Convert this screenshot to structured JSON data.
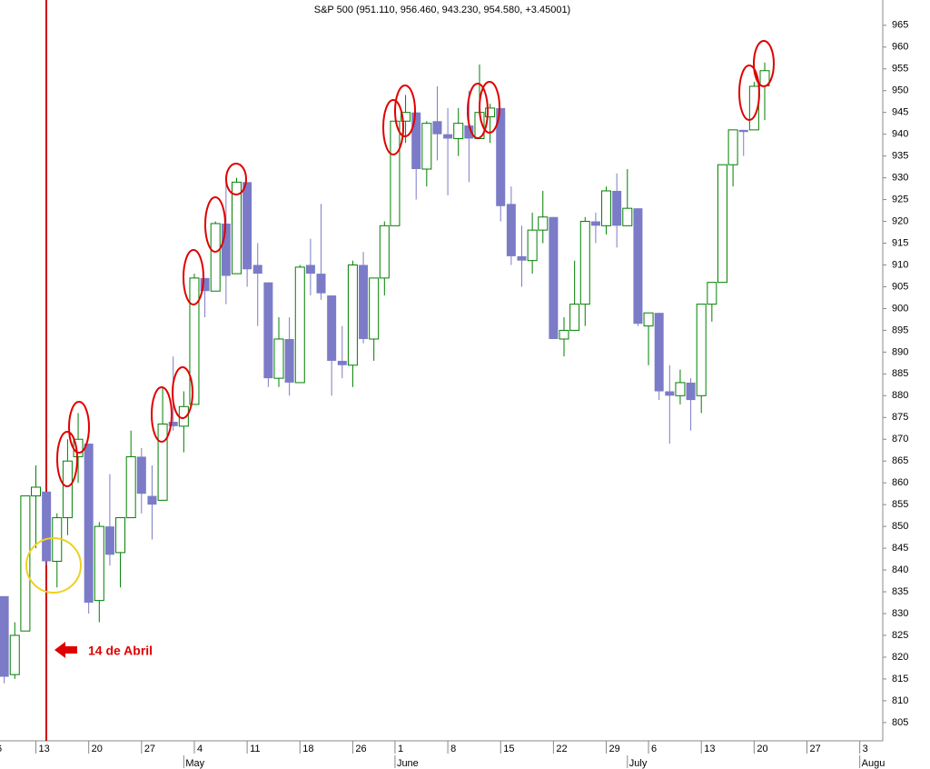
{
  "chart_data": {
    "type": "candlestick",
    "title": "S&P 500 (951.110, 956.460, 943.230, 954.580, +3.45001)",
    "annotation": "14 de Abril",
    "categories": [
      "6",
      null,
      null,
      null,
      "13",
      null,
      null,
      null,
      null,
      "20",
      null,
      null,
      null,
      null,
      "27",
      null,
      null,
      null,
      null,
      "4",
      null,
      null,
      null,
      null,
      "11",
      null,
      null,
      null,
      null,
      "18",
      null,
      null,
      null,
      null,
      "26",
      null,
      null,
      null,
      "1",
      null,
      null,
      null,
      null,
      "8",
      null,
      null,
      null,
      null,
      "15",
      null,
      null,
      null,
      null,
      "22",
      null,
      null,
      null,
      null,
      "29",
      null,
      null,
      null,
      "6",
      null,
      null,
      null,
      null,
      "13",
      null,
      null,
      null,
      null,
      "20",
      null,
      null,
      null,
      null,
      "27",
      null,
      null,
      null,
      null,
      "3",
      null,
      null
    ],
    "month_labels": [
      null,
      null,
      null,
      null,
      null,
      null,
      null,
      null,
      null,
      null,
      null,
      null,
      null,
      null,
      null,
      null,
      null,
      null,
      "May",
      null,
      null,
      null,
      null,
      null,
      null,
      null,
      null,
      null,
      null,
      null,
      null,
      null,
      null,
      null,
      null,
      null,
      null,
      null,
      "June",
      null,
      null,
      null,
      null,
      null,
      null,
      null,
      null,
      null,
      null,
      null,
      null,
      null,
      null,
      null,
      null,
      null,
      null,
      null,
      null,
      null,
      "July",
      null,
      null,
      null,
      null,
      null,
      null,
      null,
      null,
      null,
      null,
      null,
      null,
      null,
      null,
      null,
      null,
      null,
      null,
      null,
      null,
      null,
      "Augu",
      null,
      null
    ],
    "open": [
      null,
      834,
      816,
      826,
      857,
      858,
      842,
      852,
      866,
      869,
      833,
      850,
      844,
      852,
      866,
      857,
      856,
      874,
      873,
      878,
      907,
      904,
      919.5,
      908,
      929,
      910,
      906,
      884,
      893,
      883,
      910,
      908,
      903,
      888,
      887,
      910,
      893,
      907,
      919,
      943,
      945,
      932,
      943,
      940,
      939,
      942,
      939,
      944,
      946,
      924,
      912,
      911,
      918,
      921,
      893,
      895,
      901,
      920,
      919,
      927,
      919,
      923,
      896,
      899,
      881,
      880,
      883,
      880,
      901,
      906,
      933,
      941,
      941,
      951.11,
      null,
      null,
      null,
      null,
      null,
      null,
      null,
      null,
      null,
      null,
      null
    ],
    "high": [
      null,
      834,
      828,
      857,
      864,
      858,
      853,
      870,
      876,
      869,
      851,
      862,
      852,
      872,
      868,
      864,
      882,
      889,
      881,
      908,
      907,
      920,
      929,
      930,
      929,
      915,
      906,
      898,
      898,
      910,
      916,
      924,
      903,
      896,
      911,
      913,
      907,
      920,
      943,
      949,
      945,
      943,
      951,
      946,
      946,
      950,
      956,
      947,
      946,
      928,
      919,
      922,
      927,
      921,
      898,
      911,
      921,
      922,
      928,
      931,
      932,
      923,
      899,
      899,
      887,
      886,
      884,
      901,
      906,
      933,
      941,
      941,
      952,
      956.46,
      null,
      null,
      null,
      null,
      null,
      null,
      null,
      null,
      null,
      null,
      null
    ],
    "low": [
      null,
      814,
      815,
      826,
      845,
      841,
      836,
      848,
      860,
      830,
      828,
      841,
      836,
      852,
      853,
      847,
      856,
      872,
      867,
      878,
      898,
      904,
      901,
      908,
      905,
      896,
      882,
      882,
      880,
      883,
      903,
      902,
      880,
      884,
      882,
      892,
      888,
      903,
      919,
      938,
      925,
      928,
      934,
      926,
      935,
      929,
      939,
      938,
      920,
      910,
      905,
      908,
      915,
      893,
      889,
      895,
      896,
      915,
      917,
      914,
      919,
      896,
      887,
      879,
      869,
      878,
      872,
      876,
      897,
      906,
      928,
      935,
      941,
      943.23,
      null,
      null,
      null,
      null,
      null,
      null,
      null,
      null,
      null,
      null,
      null
    ],
    "close": [
      null,
      815.5,
      825,
      857,
      859,
      842,
      852,
      865,
      870,
      832.5,
      850,
      843.5,
      852,
      866,
      857.5,
      855,
      873.5,
      873,
      877.5,
      907,
      904,
      919.5,
      907.5,
      929,
      909,
      908,
      884,
      893,
      883,
      909.5,
      908,
      903.5,
      888,
      887,
      910,
      893,
      907,
      919,
      943,
      945,
      932,
      942.5,
      940,
      939,
      942.5,
      939,
      945,
      946,
      923.5,
      912,
      911,
      918,
      921,
      893,
      895,
      901,
      920,
      919,
      927,
      919,
      923,
      896.5,
      899,
      881,
      880,
      883,
      879,
      901,
      906,
      933,
      941,
      940.5,
      951,
      954.58,
      null,
      null,
      null,
      null,
      null,
      null,
      null,
      null,
      null,
      null,
      null
    ],
    "up_color": "#008000",
    "down_color": "#7b7bc8",
    "ylim": [
      800.8,
      970.8
    ],
    "yticks": [
      805,
      810,
      815,
      820,
      825,
      830,
      835,
      840,
      845,
      850,
      855,
      860,
      865,
      870,
      875,
      880,
      885,
      890,
      895,
      900,
      905,
      910,
      915,
      920,
      925,
      930,
      935,
      940,
      945,
      950,
      955,
      960,
      965
    ]
  }
}
